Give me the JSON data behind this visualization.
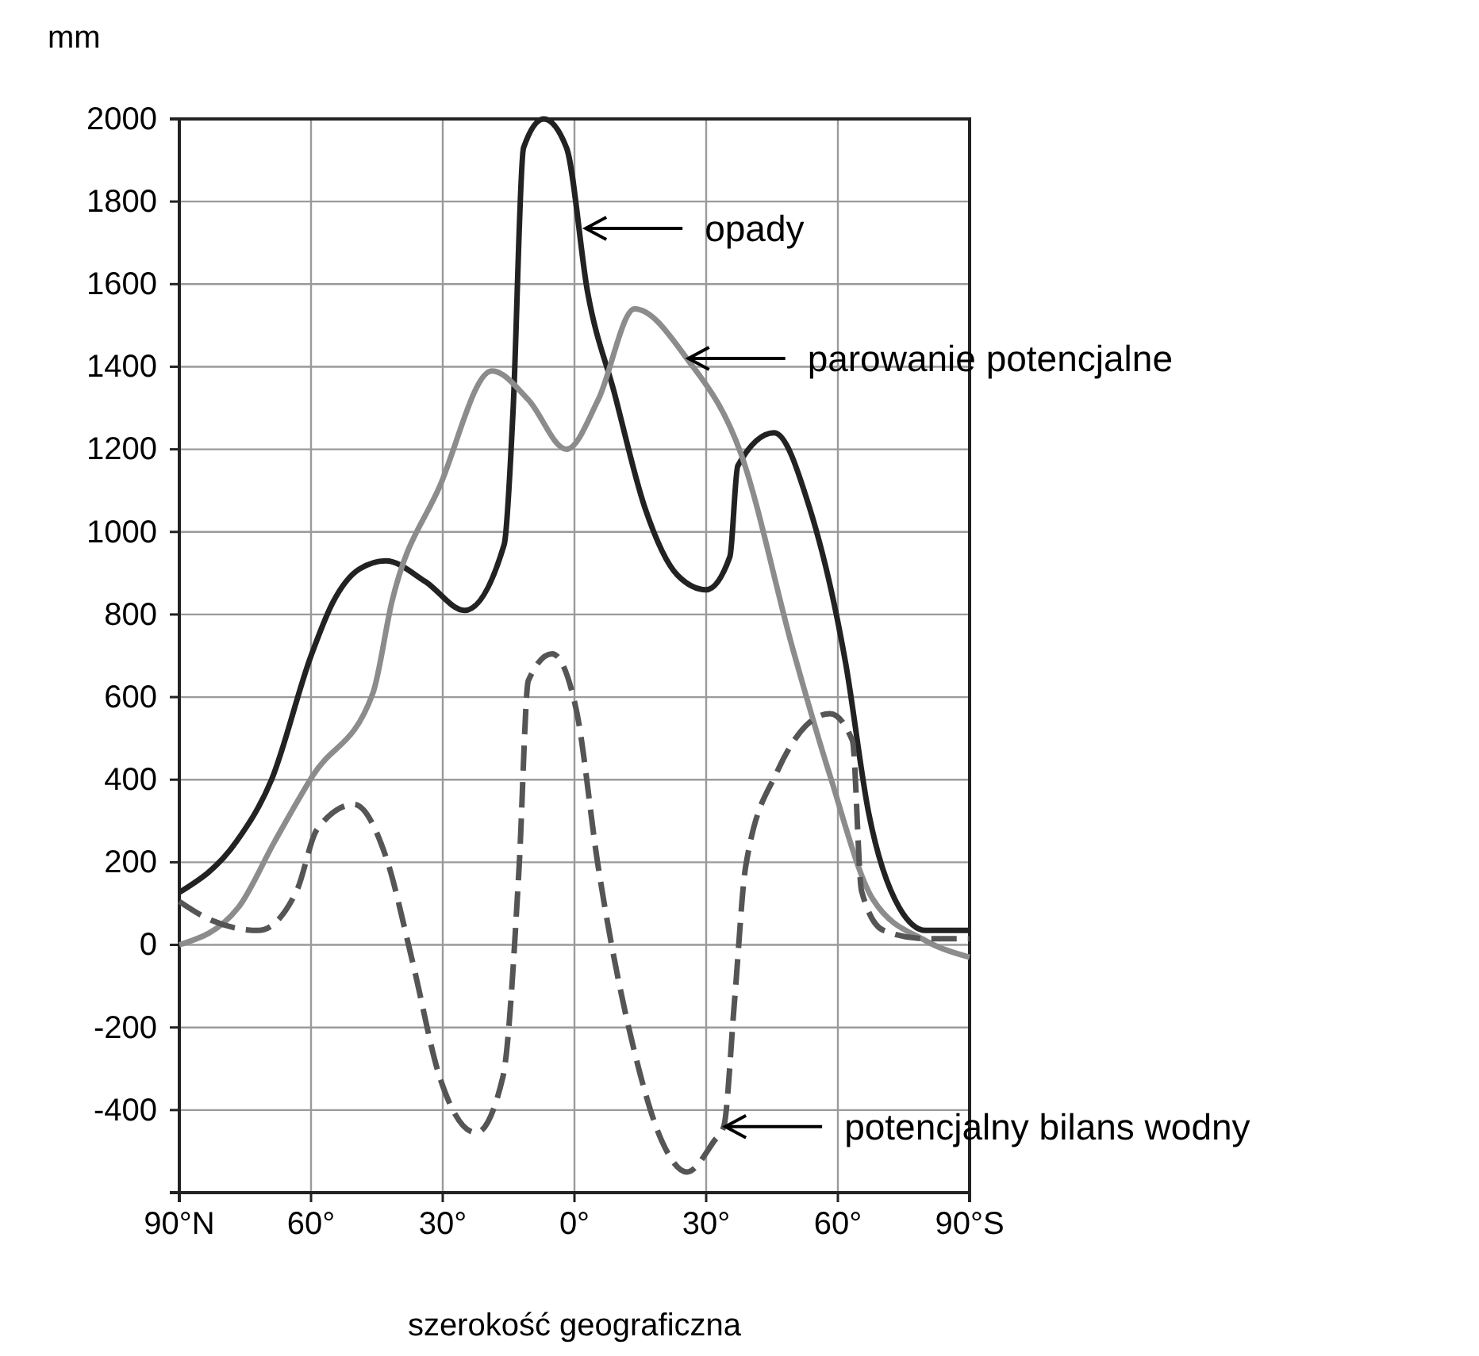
{
  "chart_data": {
    "type": "line",
    "ylabel": "mm",
    "xlabel": "szerokość geograficzna",
    "xlim": [
      90,
      -90
    ],
    "ylim": [
      -600,
      2000
    ],
    "xticks": [
      {
        "value": 90,
        "label": "90°N"
      },
      {
        "value": 60,
        "label": "60°"
      },
      {
        "value": 30,
        "label": "30°"
      },
      {
        "value": 0,
        "label": "0°"
      },
      {
        "value": -30,
        "label": "30°"
      },
      {
        "value": -60,
        "label": "60°"
      },
      {
        "value": -90,
        "label": "90°S"
      }
    ],
    "yticks": [
      {
        "value": -600,
        "label": null
      },
      -400,
      -200,
      0,
      200,
      400,
      600,
      800,
      1000,
      1200,
      1400,
      1600,
      1800,
      2000
    ],
    "grid": true,
    "series": [
      {
        "color": "#222222",
        "line_style": "solid",
        "x": [
          90,
          77,
          69,
          60,
          55,
          49,
          43,
          34,
          25,
          16,
          14,
          11.6,
          7,
          1.8,
          -3,
          -9,
          -16,
          -23.5,
          -30,
          -35.4,
          -37.2,
          -45.5,
          -53.5,
          -61.8,
          -67,
          -74,
          -80,
          -90
        ],
        "values": [
          127,
          250,
          400,
          700,
          830,
          910,
          930,
          880,
          810,
          970,
          1290,
          1930,
          2000,
          1930,
          1580,
          1340,
          1060,
          895,
          860,
          940,
          1160,
          1240,
          1060,
          680,
          320,
          90,
          35,
          35
        ]
      },
      {
        "color": "#8c8c8c",
        "line_style": "solid",
        "x": [
          90,
          76.6,
          68.3,
          59.6,
          45.9,
          41.6,
          30.7,
          18.8,
          10.5,
          1.8,
          -5.4,
          -13.7,
          -25.6,
          -37.9,
          -49.9,
          -58.2,
          -68,
          -80,
          -90
        ],
        "values": [
          0,
          90,
          250,
          410,
          610,
          830,
          1110,
          1390,
          1320,
          1200,
          1320,
          1540,
          1420,
          1190,
          710,
          410,
          110,
          10,
          -30
        ]
      },
      {
        "color": "#555555",
        "line_style": "dashed",
        "x": [
          90,
          82.8,
          72,
          63.3,
          58.6,
          50.2,
          43,
          36.9,
          30.7,
          22.4,
          16.3,
          12.6,
          10.5,
          5.1,
          -0.4,
          -5.4,
          -13.7,
          -19.9,
          -25.6,
          -31.8,
          -34,
          -36.5,
          -39,
          -46.2,
          -58.2,
          -63.3,
          -65.4,
          -70.4,
          -80,
          -90
        ],
        "values": [
          105,
          60,
          35,
          130,
          280,
          340,
          215,
          -40,
          -320,
          -455,
          -320,
          190,
          640,
          705,
          570,
          190,
          -260,
          -475,
          -550,
          -475,
          -440,
          -130,
          190,
          420,
          560,
          495,
          130,
          35,
          15,
          15
        ]
      }
    ],
    "annotations": [
      {
        "text": "opady",
        "x": -2.2,
        "y": 1735
      },
      {
        "text": "parowanie potencjalne",
        "x": -25.6,
        "y": 1420
      },
      {
        "text": "potencjalny bilans wodny",
        "x": -34,
        "y": -440
      }
    ]
  }
}
